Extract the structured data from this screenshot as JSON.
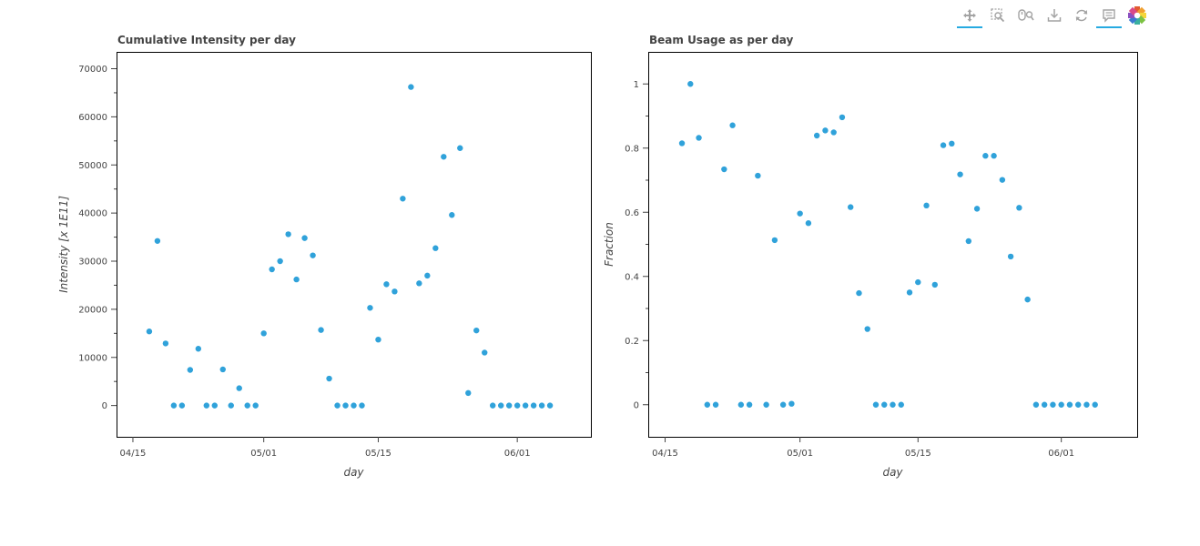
{
  "toolbar": {
    "tools": [
      {
        "name": "pan-tool",
        "icon": "move-arrows-icon",
        "active": true
      },
      {
        "name": "box-zoom-tool",
        "icon": "box-zoom-icon",
        "active": false
      },
      {
        "name": "wheel-zoom-tool",
        "icon": "wheel-zoom-icon",
        "active": false
      },
      {
        "name": "save-tool",
        "icon": "download-icon",
        "active": false
      },
      {
        "name": "reset-tool",
        "icon": "reset-icon",
        "active": false
      },
      {
        "name": "hover-tool",
        "icon": "hover-tooltip-icon",
        "active": true
      },
      {
        "name": "bokeh-logo",
        "icon": "bokeh-logo-icon",
        "active": false
      }
    ],
    "accent": "#26aae1"
  },
  "chart_data": [
    {
      "type": "scatter",
      "title": "Cumulative Intensity per day",
      "xlabel": "day",
      "ylabel": "Intensity [x 1E11]",
      "x_type": "date",
      "xlim": [
        "2024-04-13",
        "2024-06-10"
      ],
      "ylim": [
        -6500,
        73500
      ],
      "x_ticks": [
        {
          "date": "2024-04-15",
          "label": "04/15"
        },
        {
          "date": "2024-05-01",
          "label": "05/01"
        },
        {
          "date": "2024-05-15",
          "label": "05/15"
        },
        {
          "date": "2024-06-01",
          "label": "06/01"
        }
      ],
      "y_ticks": [
        {
          "value": 0,
          "label": "0"
        },
        {
          "value": 10000,
          "label": "10000"
        },
        {
          "value": 20000,
          "label": "20000"
        },
        {
          "value": 30000,
          "label": "30000"
        },
        {
          "value": 40000,
          "label": "40000"
        },
        {
          "value": 50000,
          "label": "50000"
        },
        {
          "value": 60000,
          "label": "60000"
        },
        {
          "value": 70000,
          "label": "70000"
        }
      ],
      "marker_color": "#30a2da",
      "grid": false,
      "x": [
        "2024-04-17",
        "2024-04-18",
        "2024-04-19",
        "2024-04-20",
        "2024-04-21",
        "2024-04-22",
        "2024-04-23",
        "2024-04-24",
        "2024-04-25",
        "2024-04-26",
        "2024-04-27",
        "2024-04-28",
        "2024-04-29",
        "2024-04-30",
        "2024-05-01",
        "2024-05-02",
        "2024-05-03",
        "2024-05-04",
        "2024-05-05",
        "2024-05-06",
        "2024-05-07",
        "2024-05-08",
        "2024-05-09",
        "2024-05-10",
        "2024-05-11",
        "2024-05-12",
        "2024-05-13",
        "2024-05-14",
        "2024-05-15",
        "2024-05-16",
        "2024-05-17",
        "2024-05-18",
        "2024-05-19",
        "2024-05-20",
        "2024-05-21",
        "2024-05-22",
        "2024-05-23",
        "2024-05-24",
        "2024-05-25",
        "2024-05-26",
        "2024-05-27",
        "2024-05-28",
        "2024-05-29",
        "2024-05-30",
        "2024-05-31",
        "2024-06-01",
        "2024-06-02",
        "2024-06-03",
        "2024-06-04",
        "2024-06-05"
      ],
      "y": [
        15400,
        34200,
        12900,
        0,
        0,
        7400,
        11800,
        0,
        0,
        7500,
        0,
        3600,
        0,
        0,
        15000,
        28300,
        30000,
        35600,
        26200,
        34800,
        31200,
        15700,
        5600,
        0,
        0,
        0,
        0,
        20300,
        13700,
        25200,
        23700,
        43000,
        66200,
        25400,
        27000,
        32700,
        51700,
        39600,
        53500,
        2600,
        15600,
        11000,
        0,
        0,
        0,
        0,
        0,
        0,
        0,
        0
      ]
    },
    {
      "type": "scatter",
      "title": "Beam Usage as per day",
      "xlabel": "day",
      "ylabel": "Fraction",
      "x_type": "date",
      "xlim": [
        "2024-04-13",
        "2024-06-10"
      ],
      "ylim": [
        -0.1,
        1.1
      ],
      "x_ticks": [
        {
          "date": "2024-04-15",
          "label": "04/15"
        },
        {
          "date": "2024-05-01",
          "label": "05/01"
        },
        {
          "date": "2024-05-15",
          "label": "05/15"
        },
        {
          "date": "2024-06-01",
          "label": "06/01"
        }
      ],
      "y_ticks": [
        {
          "value": 0,
          "label": "0"
        },
        {
          "value": 0.2,
          "label": "0.2"
        },
        {
          "value": 0.4,
          "label": "0.4"
        },
        {
          "value": 0.6,
          "label": "0.6"
        },
        {
          "value": 0.8,
          "label": "0.8"
        },
        {
          "value": 1,
          "label": "1"
        }
      ],
      "marker_color": "#30a2da",
      "grid": false,
      "x": [
        "2024-04-17",
        "2024-04-18",
        "2024-04-19",
        "2024-04-20",
        "2024-04-21",
        "2024-04-22",
        "2024-04-23",
        "2024-04-24",
        "2024-04-25",
        "2024-04-26",
        "2024-04-27",
        "2024-04-28",
        "2024-04-29",
        "2024-04-30",
        "2024-05-01",
        "2024-05-02",
        "2024-05-03",
        "2024-05-04",
        "2024-05-05",
        "2024-05-06",
        "2024-05-07",
        "2024-05-08",
        "2024-05-09",
        "2024-05-10",
        "2024-05-11",
        "2024-05-12",
        "2024-05-13",
        "2024-05-14",
        "2024-05-15",
        "2024-05-16",
        "2024-05-17",
        "2024-05-18",
        "2024-05-19",
        "2024-05-20",
        "2024-05-21",
        "2024-05-22",
        "2024-05-23",
        "2024-05-24",
        "2024-05-25",
        "2024-05-26",
        "2024-05-27",
        "2024-05-28",
        "2024-05-29",
        "2024-05-30",
        "2024-05-31",
        "2024-06-01",
        "2024-06-02",
        "2024-06-03",
        "2024-06-04",
        "2024-06-05"
      ],
      "y": [
        0.815,
        1.0,
        0.832,
        0,
        0,
        0.734,
        0.871,
        0,
        0,
        0.714,
        0,
        0.513,
        0,
        0.003,
        0.596,
        0.566,
        0.839,
        0.855,
        0.849,
        0.896,
        0.616,
        0.348,
        0.236,
        0,
        0,
        0,
        0,
        0.35,
        0.382,
        0.621,
        0.374,
        0.809,
        0.814,
        0.718,
        0.51,
        0.611,
        0.776,
        0.776,
        0.701,
        0.462,
        0.614,
        0.328,
        0,
        0,
        0,
        0,
        0,
        0,
        0,
        0
      ]
    }
  ]
}
